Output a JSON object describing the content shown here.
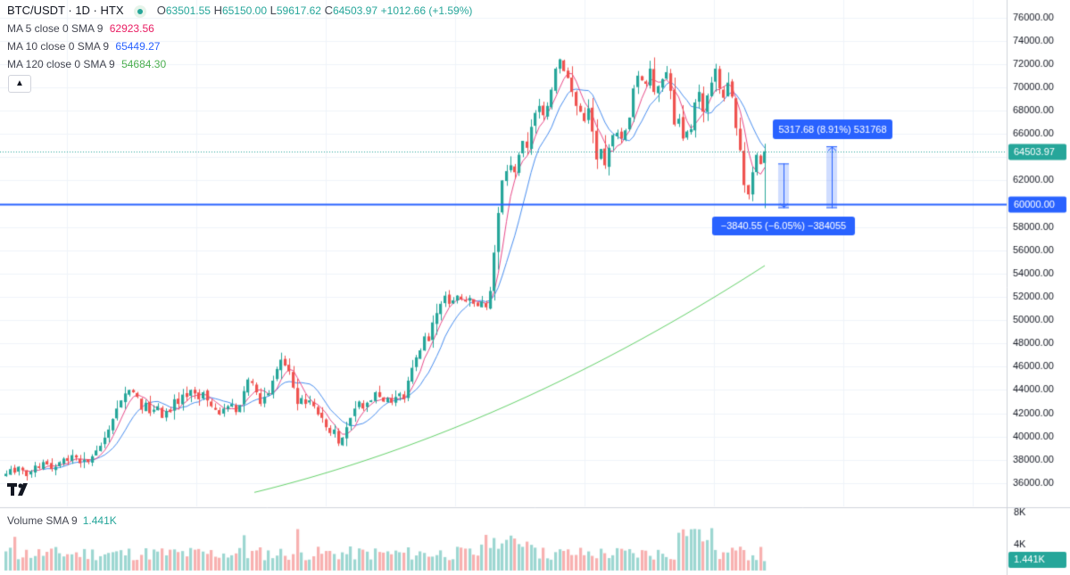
{
  "header": {
    "symbol": "BTC/USDT · 1D · HTX",
    "ohlc": {
      "o_label": "O",
      "o": "63501.55",
      "h_label": "H",
      "h": "65150.00",
      "l_label": "L",
      "l": "59617.62",
      "c_label": "C",
      "c": "64503.97",
      "change": "+1012.66 (+1.59%)"
    }
  },
  "indicators": [
    {
      "label": "MA 5 close 0 SMA 9",
      "value": "62923.56",
      "color": "#e91e63"
    },
    {
      "label": "MA 10 close 0 SMA 9",
      "value": "65449.27",
      "color": "#2962ff"
    },
    {
      "label": "MA 120 close 0 SMA 9",
      "value": "54684.30",
      "color": "#4caf50"
    }
  ],
  "collapse_icon": "chevron-up",
  "volume_legend": {
    "label": "Volume SMA 9",
    "value": "1.441K"
  },
  "chart_data": {
    "type": "candlestick",
    "y_ticks": [
      "76000.00",
      "74000.00",
      "72000.00",
      "70000.00",
      "68000.00",
      "66000.00",
      "64000.00",
      "62000.00",
      "60000.00",
      "58000.00",
      "56000.00",
      "54000.00",
      "52000.00",
      "50000.00",
      "48000.00",
      "46000.00",
      "44000.00",
      "42000.00",
      "40000.00",
      "38000.00",
      "36000.00"
    ],
    "ylim": [
      34000,
      77500
    ],
    "volume_ticks": [
      "8K",
      "4K"
    ],
    "volume_ylim": [
      0,
      9000
    ],
    "last_price_label": "64503.97",
    "horizontal_line_label": "60000.00",
    "horizontal_line_value": 60000,
    "last_price_value": 64503.97,
    "volume_last_label": "1.441K",
    "measure_up": {
      "text": "5317.68 (8.91%) 531768",
      "from": 59617.62,
      "to": 64935.3
    },
    "measure_down": {
      "text": "−3840.55 (−6.05%) −384055",
      "from": 63458.2,
      "to": 59617.62
    },
    "closes": [
      36800,
      37200,
      36900,
      37400,
      37100,
      36600,
      37000,
      37500,
      37300,
      37800,
      37600,
      37200,
      37400,
      37800,
      38100,
      37900,
      38400,
      38200,
      37700,
      38000,
      37800,
      38300,
      38800,
      39200,
      39900,
      40600,
      41500,
      42400,
      43100,
      43700,
      44000,
      43800,
      43400,
      42300,
      42900,
      42000,
      42300,
      42600,
      41600,
      42200,
      42100,
      43200,
      42800,
      43600,
      43400,
      44000,
      43700,
      43200,
      43800,
      43100,
      42600,
      42300,
      41900,
      42400,
      42600,
      42800,
      42100,
      42700,
      43900,
      44900,
      44600,
      43800,
      42800,
      43400,
      43700,
      44800,
      45800,
      46600,
      46100,
      45600,
      44200,
      42800,
      43300,
      42800,
      43100,
      42600,
      41900,
      41600,
      40800,
      40300,
      40600,
      39400,
      39900,
      40800,
      41600,
      42400,
      43000,
      42400,
      42900,
      43100,
      43800,
      43400,
      43000,
      43300,
      42900,
      43400,
      43700,
      43200,
      44800,
      45900,
      46800,
      47400,
      48600,
      48200,
      49800,
      50600,
      51400,
      52100,
      51400,
      51700,
      52100,
      51800,
      51600,
      51900,
      51400,
      51200,
      51600,
      51100,
      52500,
      55800,
      59200,
      62000,
      62800,
      63300,
      62700,
      64200,
      65400,
      64800,
      66600,
      67800,
      68400,
      67600,
      68400,
      69800,
      71600,
      72400,
      71400,
      70800,
      69600,
      68400,
      67900,
      67100,
      68200,
      66200,
      63800,
      64700,
      63300,
      64800,
      65900,
      66100,
      65600,
      66300,
      67400,
      69900,
      71000,
      70600,
      70300,
      71600,
      69600,
      70100,
      70700,
      71300,
      69700,
      66800,
      67300,
      65600,
      66200,
      66400,
      68700,
      69600,
      67900,
      69300,
      70400,
      71600,
      69900,
      69100,
      70400,
      69200,
      66500,
      64600,
      61600,
      60800,
      62700,
      64200,
      63400,
      64503
    ]
  }
}
